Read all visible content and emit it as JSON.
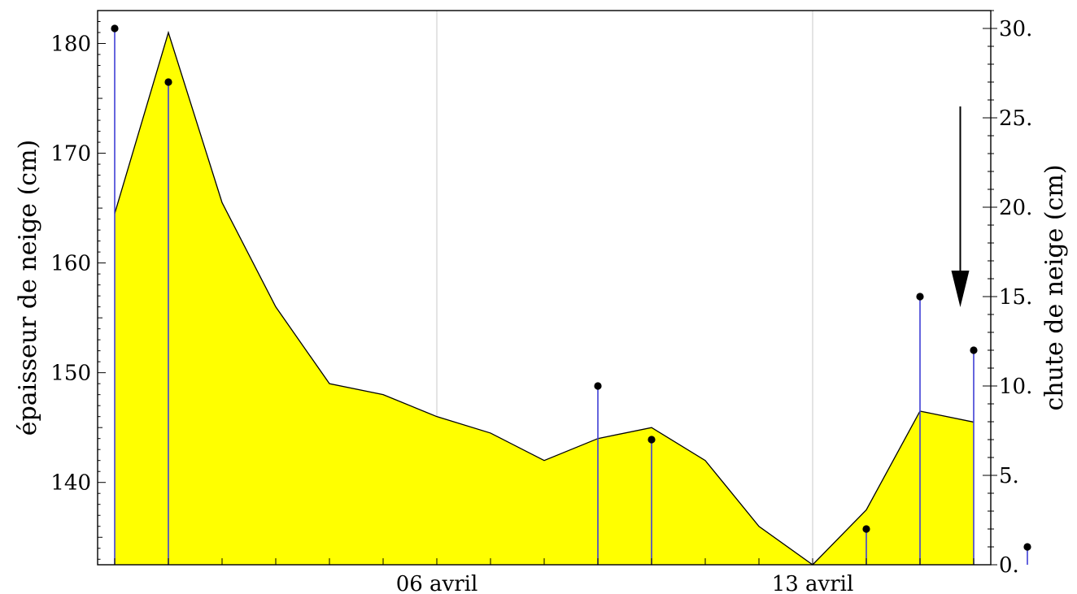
{
  "chart_data": {
    "type": "area",
    "title": "",
    "x_unit": "date",
    "x_range": [
      "2009-03-31",
      "2009-04-16"
    ],
    "x_tick_labels": [
      "06 avril",
      "13 avril"
    ],
    "x_tick_dates": [
      "2009-04-06",
      "2009-04-13"
    ],
    "y_left": {
      "label": "épaisseur de neige (cm)",
      "ylim": [
        132.5,
        183
      ],
      "ticks": [
        140,
        150,
        160,
        170,
        180
      ],
      "tick_labels": [
        "140",
        "150",
        "160",
        "170",
        "180"
      ]
    },
    "y_right": {
      "label": "chute de neige (cm)",
      "ylim": [
        0,
        31
      ],
      "ticks": [
        0,
        5,
        10,
        15,
        20,
        25,
        30
      ],
      "tick_labels": [
        "0.",
        "5.",
        "10.",
        "15.",
        "20.",
        "25.",
        "30."
      ]
    },
    "series": [
      {
        "type": "area",
        "axis": "left",
        "x": [
          "2009-03-31",
          "2009-04-01",
          "2009-04-02",
          "2009-04-03",
          "2009-04-04",
          "2009-04-05",
          "2009-04-06",
          "2009-04-07",
          "2009-04-08",
          "2009-04-09",
          "2009-04-10",
          "2009-04-11",
          "2009-04-12",
          "2009-04-13",
          "2009-04-14",
          "2009-04-15",
          "2009-04-16",
          "2009-04-17"
        ],
        "values": [
          164.5,
          181,
          165.5,
          156,
          149,
          148,
          146,
          144.5,
          142,
          144,
          145,
          142,
          136,
          132.5,
          137.5,
          146.5,
          145.5,
          null
        ]
      },
      {
        "type": "stem",
        "axis": "right",
        "x": [
          "2009-03-31",
          "2009-04-01",
          "2009-04-09",
          "2009-04-10",
          "2009-04-14",
          "2009-04-15",
          "2009-04-16",
          "2009-04-17"
        ],
        "values": [
          30,
          27,
          10,
          7,
          2,
          15,
          12,
          1
        ]
      }
    ],
    "annotations": [
      {
        "type": "arrow",
        "direction": "down",
        "date": "2009-04-15T18:00"
      }
    ],
    "grid": "vertical-at-x-ticks",
    "legend": "none",
    "colors": {
      "area_fill": "#ffff00",
      "area_line": "#000000",
      "stem_line": "#3f3fd6",
      "grid": "#c8c8c8",
      "frame": "#000000",
      "marker": "#000000"
    }
  }
}
